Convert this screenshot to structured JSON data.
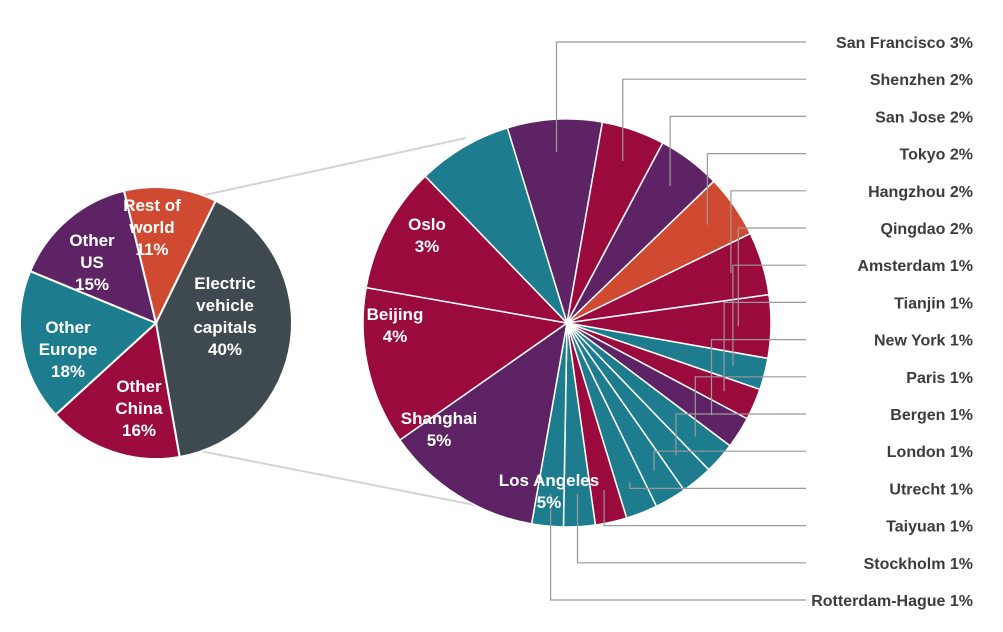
{
  "chart_data": [
    {
      "type": "pie",
      "slices": [
        {
          "label_lines": [
            "Electric",
            "vehicle",
            "capitals"
          ],
          "value": 40,
          "value_label": "40%",
          "color": "#3e4a50"
        },
        {
          "label_lines": [
            "Other",
            "China"
          ],
          "value": 16,
          "value_label": "16%",
          "color": "#9b0a3d"
        },
        {
          "label_lines": [
            "Other",
            "Europe"
          ],
          "value": 18,
          "value_label": "18%",
          "color": "#1d7d8f"
        },
        {
          "label_lines": [
            "Other",
            "US"
          ],
          "value": 15,
          "value_label": "15%",
          "color": "#5e2364"
        },
        {
          "label_lines": [
            "Rest of",
            "world"
          ],
          "value": 11,
          "value_label": "11%",
          "color": "#d04a32"
        }
      ]
    },
    {
      "type": "pie",
      "slices": [
        {
          "label": "San Francisco",
          "value": 3,
          "value_label": "3%",
          "color": "#5e2364"
        },
        {
          "label": "Shenzhen",
          "value": 2,
          "value_label": "2%",
          "color": "#9b0a3d"
        },
        {
          "label": "San Jose",
          "value": 2,
          "value_label": "2%",
          "color": "#5e2364"
        },
        {
          "label": "Tokyo",
          "value": 2,
          "value_label": "2%",
          "color": "#d04a32"
        },
        {
          "label": "Hangzhou",
          "value": 2,
          "value_label": "2%",
          "color": "#9b0a3d"
        },
        {
          "label": "Qingdao",
          "value": 2,
          "value_label": "2%",
          "color": "#9b0a3d"
        },
        {
          "label": "Amsterdam",
          "value": 1,
          "value_label": "1%",
          "color": "#1d7d8f"
        },
        {
          "label": "Tianjin",
          "value": 1,
          "value_label": "1%",
          "color": "#9b0a3d"
        },
        {
          "label": "New York",
          "value": 1,
          "value_label": "1%",
          "color": "#5e2364"
        },
        {
          "label": "Paris",
          "value": 1,
          "value_label": "1%",
          "color": "#1d7d8f"
        },
        {
          "label": "Bergen",
          "value": 1,
          "value_label": "1%",
          "color": "#1d7d8f"
        },
        {
          "label": "London",
          "value": 1,
          "value_label": "1%",
          "color": "#1d7d8f"
        },
        {
          "label": "Utrecht",
          "value": 1,
          "value_label": "1%",
          "color": "#1d7d8f"
        },
        {
          "label": "Taiyuan",
          "value": 1,
          "value_label": "1%",
          "color": "#9b0a3d"
        },
        {
          "label": "Stockholm",
          "value": 1,
          "value_label": "1%",
          "color": "#1d7d8f"
        },
        {
          "label": "Rotterdam-Hague",
          "value": 1,
          "value_label": "1%",
          "color": "#1d7d8f"
        },
        {
          "label": "Los Angeles",
          "value": 5,
          "value_label": "5%",
          "color": "#5e2364"
        },
        {
          "label": "Shanghai",
          "value": 5,
          "value_label": "5%",
          "color": "#9b0a3d"
        },
        {
          "label": "Beijing",
          "value": 4,
          "value_label": "4%",
          "color": "#9b0a3d"
        },
        {
          "label": "Oslo",
          "value": 3,
          "value_label": "3%",
          "color": "#1d7d8f"
        }
      ]
    }
  ]
}
